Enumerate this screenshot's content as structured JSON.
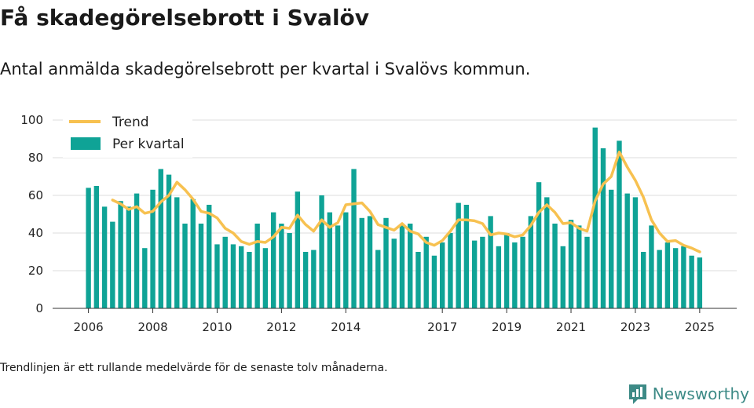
{
  "title": "Få skadegörelsebrott i Svalöv",
  "subtitle": "Antal anmälda skadegörelsebrott per kvartal i Svalövs kommun.",
  "footnote": "Trendlinjen är ett rullande medelvärde för de senaste tolv månaderna.",
  "brand": {
    "name": "Newsworthy",
    "icon": "newsworthy-logo-icon",
    "color": "#3d8a86"
  },
  "chart_data": {
    "type": "bar",
    "xlabel": "",
    "ylabel": "",
    "ylim": [
      0,
      100
    ],
    "yticks": [
      0,
      20,
      40,
      60,
      80,
      100
    ],
    "grid": true,
    "legend_position": "top-left",
    "x_tick_labels": [
      {
        "label": "2006",
        "index": 0
      },
      {
        "label": "2008",
        "index": 8
      },
      {
        "label": "2010",
        "index": 16
      },
      {
        "label": "2012",
        "index": 24
      },
      {
        "label": "2014",
        "index": 32
      },
      {
        "label": "2017",
        "index": 44
      },
      {
        "label": "2019",
        "index": 52
      },
      {
        "label": "2021",
        "index": 60
      },
      {
        "label": "2023",
        "index": 68
      },
      {
        "label": "2025",
        "index": 76
      }
    ],
    "series": [
      {
        "name": "Per kvartal",
        "type": "bar",
        "color": "#0fa396",
        "values": [
          64,
          65,
          54,
          46,
          57,
          54,
          61,
          32,
          63,
          74,
          71,
          59,
          45,
          58,
          45,
          55,
          34,
          38,
          34,
          33,
          30,
          45,
          32,
          51,
          45,
          40,
          62,
          30,
          31,
          60,
          51,
          44,
          51,
          74,
          48,
          49,
          31,
          48,
          37,
          44,
          45,
          30,
          38,
          28,
          35,
          40,
          56,
          55,
          36,
          38,
          49,
          33,
          40,
          35,
          38,
          49,
          67,
          59,
          45,
          33,
          47,
          44,
          38,
          96,
          85,
          63,
          89,
          61,
          59,
          30,
          44,
          31,
          35,
          32,
          33,
          28,
          27
        ]
      },
      {
        "name": "Trend",
        "type": "line",
        "color": "#f7c150",
        "start_index": 3,
        "values": [
          57.5,
          55.5,
          52.5,
          54,
          50.5,
          51.5,
          56.5,
          60,
          67,
          63,
          58,
          51.5,
          50.5,
          48,
          42.5,
          40,
          35.5,
          34,
          35.5,
          35,
          38,
          43,
          42.5,
          49.5,
          44.5,
          41,
          47,
          43,
          45.5,
          55,
          55.5,
          56,
          51.5,
          44.5,
          43,
          41.5,
          45,
          41,
          39.5,
          35,
          33.5,
          36,
          41,
          47,
          47,
          46.5,
          45,
          39,
          40,
          39.5,
          38,
          39,
          44,
          51,
          55,
          51,
          45,
          45.5,
          42.5,
          41,
          57,
          66,
          70,
          83,
          75,
          68,
          59,
          47,
          40,
          35.5,
          36,
          33.5,
          32,
          30
        ]
      }
    ]
  }
}
